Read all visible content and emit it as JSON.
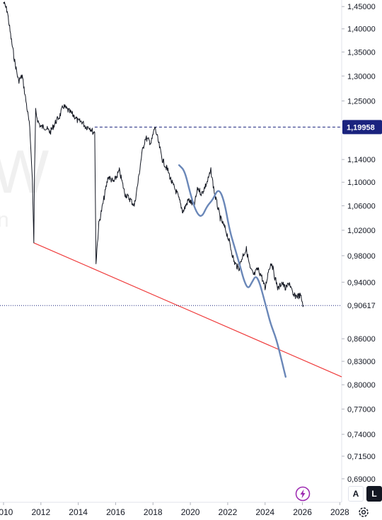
{
  "chart_data": {
    "type": "line",
    "title": "",
    "xlabel": "",
    "ylabel": "",
    "scale": "log",
    "xlim": [
      2010.0,
      2028.1
    ],
    "ylim": [
      0.665,
      1.465
    ],
    "x_ticks": [
      "2010",
      "2012",
      "2014",
      "2016",
      "2018",
      "2020",
      "2022",
      "2024",
      "2026",
      "2028"
    ],
    "y_ticks": [
      "1,45000",
      "1,40000",
      "1,35000",
      "1,30000",
      "1,25000",
      "1,14000",
      "1,10000",
      "1,06000",
      "1,02000",
      "0,98000",
      "0,94000",
      "0,86000",
      "0,83000",
      "0,80000",
      "0,77000",
      "0,74000",
      "0,71500",
      "0,69000"
    ],
    "price_series": {
      "name": "",
      "color": "#131722",
      "x": [
        2010.0,
        2010.2,
        2010.4,
        2010.6,
        2010.8,
        2011.0,
        2011.2,
        2011.4,
        2011.55,
        2011.62,
        2011.66,
        2011.72,
        2011.85,
        2012.0,
        2012.2,
        2012.5,
        2012.8,
        2013.0,
        2013.2,
        2013.5,
        2013.8,
        2014.0,
        2014.2,
        2014.4,
        2014.6,
        2014.8,
        2014.88,
        2014.95,
        2015.1,
        2015.3,
        2015.6,
        2015.9,
        2016.2,
        2016.5,
        2016.8,
        2017.0,
        2017.2,
        2017.4,
        2017.6,
        2017.9,
        2018.1,
        2018.3,
        2018.5,
        2018.8,
        2019.0,
        2019.3,
        2019.6,
        2019.9,
        2020.2,
        2020.4,
        2020.6,
        2020.9,
        2021.1,
        2021.3,
        2021.6,
        2021.9,
        2022.1,
        2022.35,
        2022.6,
        2022.8,
        2023.0,
        2023.2,
        2023.4,
        2023.6,
        2023.8,
        2024.0,
        2024.2,
        2024.35,
        2024.5,
        2024.7,
        2024.9,
        2025.1,
        2025.3,
        2025.5,
        2025.7,
        2025.9,
        2026.05
      ],
      "y": [
        1.46,
        1.44,
        1.38,
        1.33,
        1.29,
        1.3,
        1.25,
        1.2,
        1.1,
        1.0,
        1.12,
        1.23,
        1.21,
        1.2,
        1.2,
        1.19,
        1.21,
        1.22,
        1.24,
        1.23,
        1.22,
        1.21,
        1.21,
        1.2,
        1.2,
        1.19,
        1.19,
        0.97,
        1.03,
        1.06,
        1.11,
        1.1,
        1.12,
        1.08,
        1.07,
        1.06,
        1.1,
        1.15,
        1.18,
        1.17,
        1.2,
        1.17,
        1.14,
        1.12,
        1.1,
        1.08,
        1.05,
        1.07,
        1.06,
        1.09,
        1.08,
        1.1,
        1.12,
        1.08,
        1.04,
        1.02,
        1.0,
        0.97,
        0.96,
        0.98,
        0.99,
        0.96,
        0.95,
        0.96,
        0.95,
        0.93,
        0.96,
        0.97,
        0.95,
        0.93,
        0.94,
        0.93,
        0.94,
        0.92,
        0.92,
        0.92,
        0.906
      ]
    },
    "projection_series": {
      "name": "",
      "color": "#6a87b8",
      "x": [
        2019.4,
        2019.7,
        2020.0,
        2020.3,
        2020.6,
        2020.9,
        2021.2,
        2021.5,
        2021.8,
        2022.1,
        2022.4,
        2022.7,
        2022.9,
        2023.1,
        2023.3,
        2023.5,
        2023.7,
        2023.9,
        2024.1,
        2024.3,
        2024.6,
        2024.9,
        2025.1
      ],
      "y": [
        1.13,
        1.12,
        1.08,
        1.05,
        1.04,
        1.06,
        1.07,
        1.09,
        1.07,
        1.02,
        0.99,
        0.96,
        0.94,
        0.93,
        0.94,
        0.95,
        0.94,
        0.92,
        0.9,
        0.88,
        0.86,
        0.83,
        0.81
      ]
    },
    "trendline": {
      "color": "#ef3b3b",
      "x": [
        2011.62,
        2028.1
      ],
      "y": [
        1.0,
        0.81
      ]
    },
    "horizontal_level": {
      "value": 1.19958,
      "label": "1,19958",
      "x_start": 2014.88,
      "color": "#1a237e"
    },
    "current_price": {
      "value": 0.90617,
      "label": "0,90617"
    }
  },
  "toolbar": {
    "auto_label": "A",
    "log_label": "L",
    "settings_icon": "gear-icon",
    "flash_icon": "lightning-icon"
  },
  "watermark": {
    "top": "W",
    "bottom": "n"
  }
}
